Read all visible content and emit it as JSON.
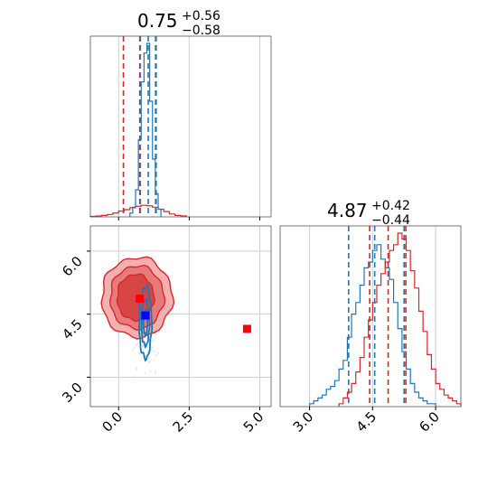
{
  "colors": {
    "blue": "#1f77b4",
    "red": "#d62728",
    "red_fill_outer": "#f3b0b0",
    "red_fill_mid": "#e77a7a",
    "red_fill_inner": "#d84545",
    "grid": "#cfcfcf",
    "marker_red": "#ff0000",
    "marker_blue": "#0000ff"
  },
  "chart_data": {
    "type": "corner",
    "grid": true,
    "parameters": [
      {
        "title": {
          "median": "0.75",
          "upper": "+0.56",
          "lower": "−0.58"
        },
        "lim": [
          -1.0,
          5.4
        ],
        "ticks": [
          0.0,
          2.5,
          5.0
        ],
        "tick_labels": [
          "0.0",
          "2.5",
          "5.0"
        ]
      },
      {
        "title": {
          "median": "4.87",
          "upper": "+0.42",
          "lower": "−0.44"
        },
        "lim": [
          2.3,
          6.6
        ],
        "ticks": [
          3.0,
          4.5,
          6.0
        ],
        "tick_labels": [
          "3.0",
          "4.5",
          "6.0"
        ]
      }
    ],
    "hist1": {
      "blue": {
        "bins": [
          0.4,
          0.5,
          0.6,
          0.7,
          0.8,
          0.9,
          1.0,
          1.1,
          1.2,
          1.3,
          1.4,
          1.5
        ],
        "counts": [
          2,
          5,
          14,
          40,
          70,
          85,
          90,
          60,
          30,
          12,
          4
        ],
        "quantiles": [
          0.77,
          1.05,
          1.33
        ]
      },
      "red": {
        "bins": [
          -1.0,
          -0.8,
          -0.6,
          -0.4,
          -0.2,
          0.0,
          0.2,
          0.4,
          0.6,
          0.8,
          1.0,
          1.2,
          1.4,
          1.6,
          1.8,
          2.0,
          2.2,
          2.4
        ],
        "counts": [
          1,
          2,
          3,
          5,
          8,
          12,
          15,
          19,
          22,
          24,
          23,
          20,
          16,
          11,
          6,
          3,
          2
        ],
        "quantiles": [
          0.17,
          0.75,
          1.31
        ]
      }
    },
    "hist2": {
      "blue": {
        "bins": [
          3.0,
          3.1,
          3.2,
          3.3,
          3.4,
          3.5,
          3.6,
          3.7,
          3.8,
          3.9,
          4.0,
          4.1,
          4.2,
          4.3,
          4.4,
          4.5,
          4.6,
          4.7,
          4.8,
          4.9,
          5.0,
          5.1,
          5.2,
          5.3,
          5.4,
          5.5,
          5.6,
          5.7,
          5.8,
          5.9,
          6.0
        ],
        "counts": [
          1,
          2,
          3,
          4,
          6,
          7,
          9,
          13,
          16,
          24,
          32,
          36,
          42,
          48,
          50,
          54,
          56,
          51,
          48,
          44,
          36,
          27,
          19,
          13,
          8,
          5,
          3,
          2,
          1,
          1
        ],
        "quantiles": [
          3.93,
          4.55,
          5.25
        ]
      },
      "red": {
        "bins": [
          3.7,
          3.8,
          3.9,
          4.0,
          4.1,
          4.2,
          4.3,
          4.4,
          4.5,
          4.6,
          4.7,
          4.8,
          4.9,
          5.0,
          5.1,
          5.2,
          5.3,
          5.4,
          5.5,
          5.6,
          5.7,
          5.8,
          5.9,
          6.0,
          6.1,
          6.2,
          6.3,
          6.4,
          6.5,
          6.6
        ],
        "counts": [
          1,
          3,
          5,
          8,
          12,
          17,
          24,
          30,
          36,
          42,
          46,
          50,
          54,
          56,
          60,
          58,
          54,
          47,
          41,
          33,
          26,
          18,
          13,
          8,
          6,
          4,
          3,
          2,
          1
        ],
        "quantiles": [
          4.43,
          4.87,
          5.29
        ]
      }
    },
    "scatter": {
      "markers": [
        {
          "x": 0.75,
          "y": 4.87,
          "color": "red",
          "shape": "square"
        },
        {
          "x": 4.55,
          "y": 4.15,
          "color": "red",
          "shape": "square"
        },
        {
          "x": 0.95,
          "y": 4.47,
          "color": "blue",
          "shape": "square"
        }
      ],
      "red_contour_levels": [
        {
          "cx": 0.65,
          "cy": 4.9,
          "rx": 1.25,
          "ry": 0.95
        },
        {
          "cx": 0.65,
          "cy": 4.9,
          "rx": 0.95,
          "ry": 0.75
        },
        {
          "cx": 0.6,
          "cy": 4.9,
          "rx": 0.65,
          "ry": 0.55
        }
      ],
      "blue_contour_levels": [
        {
          "cx": 0.95,
          "cy": 4.3,
          "rx": 0.22,
          "ry": 0.85
        },
        {
          "cx": 0.95,
          "cy": 4.3,
          "rx": 0.14,
          "ry": 0.55
        },
        {
          "cx": 0.95,
          "cy": 4.3,
          "rx": 0.07,
          "ry": 0.3
        }
      ]
    }
  }
}
